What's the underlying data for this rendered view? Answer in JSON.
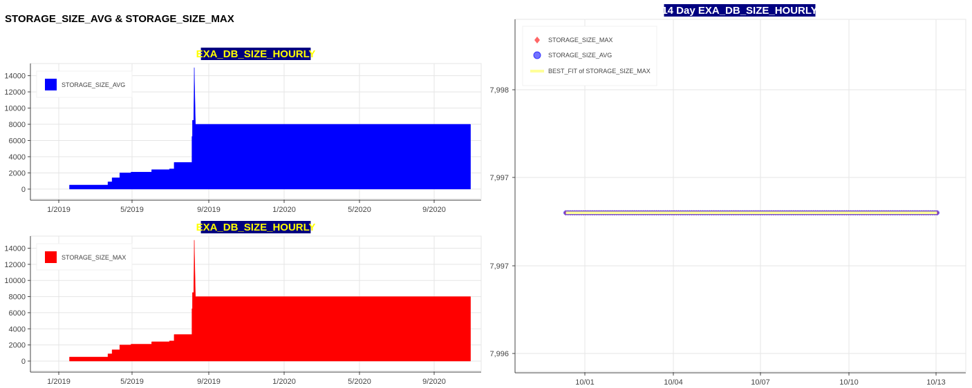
{
  "page_title": "STORAGE_SIZE_AVG & STORAGE_SIZE_MAX",
  "colors": {
    "avg": "#0000ff",
    "max": "#ff0000",
    "title_bg": "#000080",
    "title_fg": "#ffff00",
    "right_title_fg": "#ffffff",
    "fit": "#ffff99"
  },
  "chart_data": [
    {
      "id": "avg_chart",
      "type": "area",
      "title": "EXA_DB_SIZE_HOURLY",
      "xlabel": "",
      "ylabel": "",
      "x_ticks": [
        "1/2019",
        "5/2019",
        "9/2019",
        "1/2020",
        "5/2020",
        "9/2020"
      ],
      "y_ticks": [
        "0",
        "2000",
        "4000",
        "6000",
        "8000",
        "10000",
        "12000",
        "14000"
      ],
      "xlim": [
        "2018-10-01",
        "2020-11-01"
      ],
      "ylim": [
        -1200,
        15500
      ],
      "legend": {
        "placement": "top-left",
        "entries": [
          "STORAGE_SIZE_AVG"
        ]
      },
      "grid": true,
      "series": [
        {
          "name": "STORAGE_SIZE_AVG",
          "color": "#0000ff",
          "points": [
            [
              "2018-12-06",
              500
            ],
            [
              "2019-02-09",
              500
            ],
            [
              "2019-02-09",
              900
            ],
            [
              "2019-02-16",
              900
            ],
            [
              "2019-02-16",
              1400
            ],
            [
              "2019-03-01",
              1400
            ],
            [
              "2019-03-01",
              2000
            ],
            [
              "2019-03-20",
              2000
            ],
            [
              "2019-03-20",
              2100
            ],
            [
              "2019-04-24",
              2100
            ],
            [
              "2019-04-24",
              2400
            ],
            [
              "2019-05-24",
              2400
            ],
            [
              "2019-05-24",
              2500
            ],
            [
              "2019-06-01",
              2500
            ],
            [
              "2019-06-01",
              3300
            ],
            [
              "2019-07-01",
              3300
            ],
            [
              "2019-07-01",
              6500
            ],
            [
              "2019-07-02",
              6500
            ],
            [
              "2019-07-02",
              8500
            ],
            [
              "2019-07-04",
              8500
            ],
            [
              "2019-07-05",
              15000
            ],
            [
              "2019-07-07",
              8000
            ],
            [
              "2020-10-14",
              8000
            ]
          ]
        }
      ]
    },
    {
      "id": "max_chart",
      "type": "area",
      "title": "EXA_DB_SIZE_HOURLY",
      "xlabel": "",
      "ylabel": "",
      "x_ticks": [
        "1/2019",
        "5/2019",
        "9/2019",
        "1/2020",
        "5/2020",
        "9/2020"
      ],
      "y_ticks": [
        "0",
        "2000",
        "4000",
        "6000",
        "8000",
        "10000",
        "12000",
        "14000"
      ],
      "xlim": [
        "2018-10-01",
        "2020-11-01"
      ],
      "ylim": [
        -1200,
        15500
      ],
      "legend": {
        "placement": "top-left",
        "entries": [
          "STORAGE_SIZE_MAX"
        ]
      },
      "grid": true,
      "series": [
        {
          "name": "STORAGE_SIZE_MAX",
          "color": "#ff0000",
          "points": [
            [
              "2018-12-06",
              500
            ],
            [
              "2019-02-09",
              500
            ],
            [
              "2019-02-09",
              900
            ],
            [
              "2019-02-16",
              900
            ],
            [
              "2019-02-16",
              1400
            ],
            [
              "2019-03-01",
              1400
            ],
            [
              "2019-03-01",
              2000
            ],
            [
              "2019-03-20",
              2000
            ],
            [
              "2019-03-20",
              2100
            ],
            [
              "2019-04-24",
              2100
            ],
            [
              "2019-04-24",
              2400
            ],
            [
              "2019-05-24",
              2400
            ],
            [
              "2019-05-24",
              2500
            ],
            [
              "2019-06-01",
              2500
            ],
            [
              "2019-06-01",
              3300
            ],
            [
              "2019-07-01",
              3300
            ],
            [
              "2019-07-01",
              6500
            ],
            [
              "2019-07-02",
              6500
            ],
            [
              "2019-07-02",
              8500
            ],
            [
              "2019-07-04",
              8500
            ],
            [
              "2019-07-05",
              15000
            ],
            [
              "2019-07-07",
              8000
            ],
            [
              "2020-10-14",
              8000
            ]
          ]
        }
      ]
    },
    {
      "id": "scatter_chart",
      "type": "scatter",
      "title": "14 Day EXA_DB_SIZE_HOURLY",
      "xlabel": "",
      "ylabel": "",
      "x_ticks": [
        "10/01",
        "10/04",
        "10/07",
        "10/10",
        "10/13"
      ],
      "y_ticks": [
        "7,996",
        "7,997",
        "7,997",
        "7,998"
      ],
      "xlim": [
        "2020-09-27T12:00",
        "2020-10-14T12:00"
      ],
      "legend": {
        "placement": "top-left",
        "entries": [
          "STORAGE_SIZE_MAX",
          "STORAGE_SIZE_AVG",
          "BEST_FIT of STORAGE_SIZE_MAX"
        ]
      },
      "grid": true,
      "series": [
        {
          "name": "STORAGE_SIZE_MAX",
          "color": "#ff0000",
          "marker": "diamond",
          "x_start": "2020-09-29T10:00",
          "x_end": "2020-10-13T10:00",
          "hourly": true,
          "value": 7996.8
        },
        {
          "name": "STORAGE_SIZE_AVG",
          "color": "#0000ff",
          "marker": "circle",
          "x_start": "2020-09-29T10:00",
          "x_end": "2020-10-13T10:00",
          "hourly": true,
          "value": 7996.8
        },
        {
          "name": "BEST_FIT of STORAGE_SIZE_MAX",
          "color": "#ffff99",
          "marker": "line",
          "x_start": "2020-09-29T10:00",
          "x_end": "2020-10-13T10:00",
          "value": 7996.8
        }
      ]
    }
  ]
}
